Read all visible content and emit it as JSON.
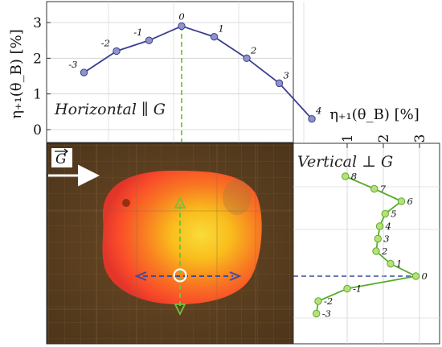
{
  "colors": {
    "horizontal_series": "#3a3f8f",
    "horizontal_marker": "#8f93c9",
    "vertical_series": "#59ad2d",
    "vertical_marker": "#b8e07a",
    "green_guide": "#5fbf2a",
    "blue_guide": "#3d4c9a",
    "background_photo": "#5a3d1e"
  },
  "chart_data": [
    {
      "type": "line",
      "ylabel": "η₊₁(θ_B) [%]",
      "annotation": "Horizontal ∥ G",
      "ylim": [
        -0.4,
        3.5
      ],
      "yticks": [
        0,
        1,
        2,
        3
      ],
      "grid": true,
      "points": [
        {
          "label": "-3",
          "x": -3,
          "y": 1.6
        },
        {
          "label": "-2",
          "x": -2,
          "y": 2.2
        },
        {
          "label": "-1",
          "x": -1,
          "y": 2.5
        },
        {
          "label": "0",
          "x": 0,
          "y": 2.9
        },
        {
          "label": "1",
          "x": 1,
          "y": 2.6
        },
        {
          "label": "2",
          "x": 2,
          "y": 2.0
        },
        {
          "label": "3",
          "x": 3,
          "y": 1.3
        },
        {
          "label": "4",
          "x": 4,
          "y": 0.3
        }
      ]
    },
    {
      "type": "line",
      "xlabel": "η₊₁(θ_B) [%]",
      "annotation": "Vertical ⊥ G",
      "xlim": [
        0,
        3
      ],
      "xticks": [
        1,
        2,
        3
      ],
      "grid": true,
      "points": [
        {
          "label": "8",
          "y": 8,
          "x": 0.95
        },
        {
          "label": "7",
          "y": 7,
          "x": 1.75
        },
        {
          "label": "6",
          "y": 6,
          "x": 2.5
        },
        {
          "label": "5",
          "y": 5,
          "x": 2.05
        },
        {
          "label": "4",
          "y": 4,
          "x": 1.9
        },
        {
          "label": "3",
          "y": 3,
          "x": 1.85
        },
        {
          "label": "2",
          "y": 2,
          "x": 1.8
        },
        {
          "label": "1",
          "y": 1,
          "x": 2.2
        },
        {
          "label": "0",
          "y": 0,
          "x": 2.9
        },
        {
          "label": "-1",
          "y": -1,
          "x": 1.0
        },
        {
          "label": "-2",
          "y": -2,
          "x": 0.2
        },
        {
          "label": "-3",
          "y": -3,
          "x": 0.15
        }
      ]
    }
  ]
}
